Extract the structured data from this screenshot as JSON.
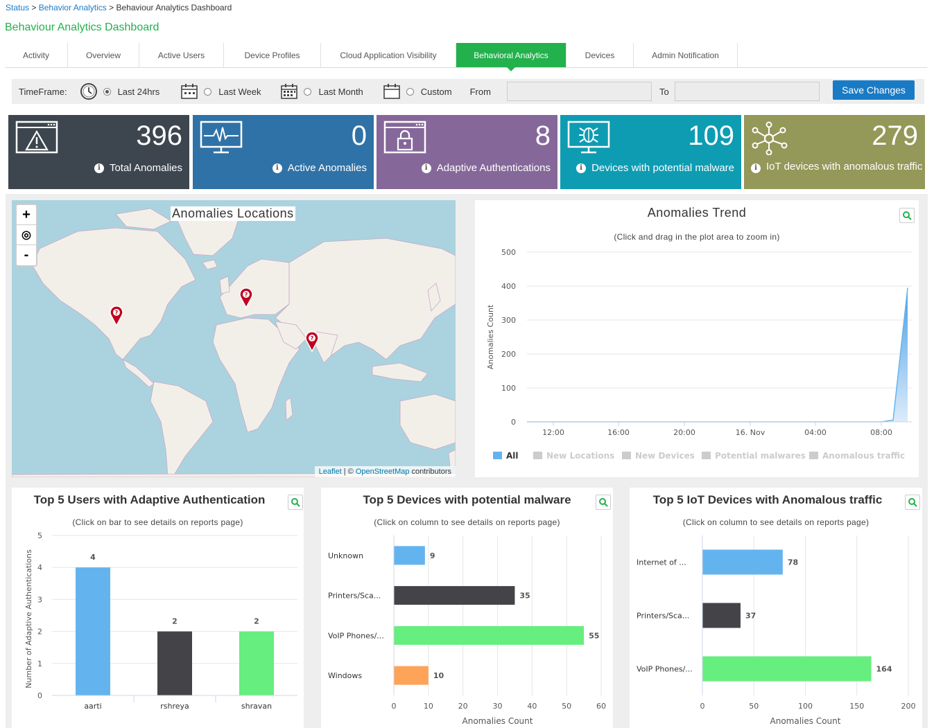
{
  "breadcrumb": {
    "items": [
      "Status",
      "Behavior Analytics",
      "Behaviour Analytics Dashboard"
    ],
    "sep": ">"
  },
  "page_title": "Behaviour Analytics Dashboard",
  "tabs": [
    {
      "label": "Activity",
      "active": false
    },
    {
      "label": "Overview",
      "active": false
    },
    {
      "label": "Active Users",
      "active": false
    },
    {
      "label": "Device Profiles",
      "active": false
    },
    {
      "label": "Cloud Application Visibility",
      "active": false
    },
    {
      "label": "Behavioral Analytics",
      "active": true
    },
    {
      "label": "Devices",
      "active": false
    },
    {
      "label": "Admin Notification",
      "active": false
    }
  ],
  "timeframe": {
    "label": "TimeFrame:",
    "options": [
      {
        "label": "Last 24hrs",
        "selected": true,
        "icon": "clock-icon"
      },
      {
        "label": "Last Week",
        "selected": false,
        "icon": "calendar-icon"
      },
      {
        "label": "Last Month",
        "selected": false,
        "icon": "calendar-grid-icon"
      },
      {
        "label": "Custom",
        "selected": false,
        "icon": "calendar-icon"
      }
    ],
    "from_label": "From",
    "to_label": "To",
    "from_value": "",
    "to_value": "",
    "save_label": "Save Changes"
  },
  "tiles": [
    {
      "value": "396",
      "label": "Total Anomalies",
      "color": "#3d464e",
      "icon": "warning-monitor-icon"
    },
    {
      "value": "0",
      "label": "Active Anomalies",
      "color": "#2f72a7",
      "icon": "pulse-monitor-icon"
    },
    {
      "value": "8",
      "label": "Adaptive Authentications",
      "color": "#856899",
      "icon": "lock-monitor-icon"
    },
    {
      "value": "109",
      "label": "Devices with potential malware",
      "color": "#0e9cb3",
      "icon": "bug-monitor-icon"
    },
    {
      "value": "279",
      "label": "IoT devices with anomalous traffic",
      "color": "#949858",
      "icon": "network-nodes-icon"
    }
  ],
  "map": {
    "title": "Anomalies Locations",
    "zoom_in": "+",
    "zoom_reset": "◎",
    "zoom_out": "-",
    "attribution_leaflet": "Leaflet",
    "attribution_sep": " | © ",
    "attribution_osm": "OpenStreetMap",
    "attribution_tail": " contributors",
    "markers": [
      "west-us",
      "central-europe",
      "south-india"
    ]
  },
  "trend": {
    "title": "Anomalies Trend",
    "subtitle": "(Click and drag in the plot area to zoom in)"
  },
  "users_card": {
    "title": "Top 5 Users with Adaptive Authentication",
    "subtitle": "(Click on bar to see details on reports page)"
  },
  "malware_card": {
    "title": "Top 5 Devices with potential malware",
    "subtitle": "(Click on column to see details on reports page)"
  },
  "iot_card": {
    "title": "Top 5 IoT Devices with Anomalous traffic",
    "subtitle": "(Click on column to see details on reports page)"
  },
  "chart_data": [
    {
      "type": "area",
      "title": "Anomalies Trend",
      "subtitle": "(Click and drag in the plot area to zoom in)",
      "ylabel": "Anomalies Count",
      "ylim": [
        0,
        500
      ],
      "yticks": [
        0,
        100,
        200,
        300,
        400,
        500
      ],
      "xticks": [
        "12:00",
        "16:00",
        "20:00",
        "16. Nov",
        "04:00",
        "08:00"
      ],
      "x": [
        "10:30",
        "12:00",
        "16:00",
        "20:00",
        "16. Nov",
        "04:00",
        "08:00",
        "09:00",
        "10:00"
      ],
      "series": [
        {
          "name": "All",
          "values": [
            0,
            0,
            0,
            0,
            0,
            0,
            0,
            5,
            395
          ],
          "color": "#63b4ee"
        }
      ],
      "legend": [
        {
          "name": "All",
          "enabled": true,
          "color": "#63b4ee"
        },
        {
          "name": "New Locations",
          "enabled": false,
          "color": "#cccccc"
        },
        {
          "name": "New Devices",
          "enabled": false,
          "color": "#cccccc"
        },
        {
          "name": "Potential malwares",
          "enabled": false,
          "color": "#cccccc"
        },
        {
          "name": "Anomalous traffic",
          "enabled": false,
          "color": "#cccccc"
        }
      ],
      "legend_position": "bottom",
      "grid": true
    },
    {
      "type": "bar",
      "title": "Top 5 Users with Adaptive Authentication",
      "ylabel": "Number of Adaptive Authentications",
      "ylim": [
        0,
        5
      ],
      "yticks": [
        0,
        1,
        2,
        3,
        4,
        5
      ],
      "categories": [
        "aarti",
        "rshreya",
        "shravan"
      ],
      "values": [
        4,
        2,
        2
      ],
      "colors": [
        "#63b4ee",
        "#434348",
        "#66ee7e"
      ],
      "grid": true
    },
    {
      "type": "bar",
      "orientation": "horizontal",
      "title": "Top 5 Devices with potential malware",
      "xlabel": "Anomalies Count",
      "xlim": [
        0,
        60
      ],
      "xticks": [
        0,
        10,
        20,
        30,
        40,
        50,
        60
      ],
      "categories": [
        "Unknown",
        "Printers/Sca...",
        "VoIP Phones/...",
        "Windows"
      ],
      "values": [
        9,
        35,
        55,
        10
      ],
      "colors": [
        "#63b4ee",
        "#434348",
        "#66ee7e",
        "#fda458"
      ],
      "grid": true
    },
    {
      "type": "bar",
      "orientation": "horizontal",
      "title": "Top 5 IoT Devices with Anomalous traffic",
      "xlabel": "Anomalies Count",
      "xlim": [
        0,
        200
      ],
      "xticks": [
        0,
        50,
        100,
        150,
        200
      ],
      "categories": [
        "Internet of ...",
        "Printers/Sca...",
        "VoIP Phones/..."
      ],
      "values": [
        78,
        37,
        164
      ],
      "colors": [
        "#63b4ee",
        "#434348",
        "#66ee7e"
      ],
      "grid": true
    }
  ]
}
